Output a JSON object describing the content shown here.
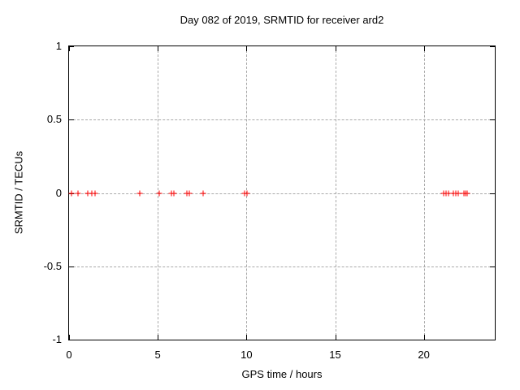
{
  "chart_data": {
    "type": "scatter",
    "title": "Day 082 of 2019, SRMTID for receiver ard2",
    "xlabel": "GPS time / hours",
    "ylabel": "SRMTID / TECUs",
    "xlim": [
      0,
      24
    ],
    "ylim": [
      -1,
      1
    ],
    "grid": true,
    "legend": "none",
    "xticks": [
      {
        "value": 0,
        "label": "0"
      },
      {
        "value": 5,
        "label": "5"
      },
      {
        "value": 10,
        "label": "10"
      },
      {
        "value": 15,
        "label": "15"
      },
      {
        "value": 20,
        "label": "20"
      }
    ],
    "yticks": [
      {
        "value": 1,
        "label": "1"
      },
      {
        "value": 0.5,
        "label": "0.5"
      },
      {
        "value": 0,
        "label": "0"
      },
      {
        "value": -0.5,
        "label": "-0.5"
      },
      {
        "value": -1,
        "label": "-1"
      }
    ],
    "marker": {
      "shape": "plus",
      "color": "#ff0000",
      "size": 7
    },
    "grid_color": "#a9a9a9",
    "frame_color": "#000000",
    "series": [
      {
        "name": "SRMTID",
        "color": "#ff0000",
        "x": [
          0.15,
          0.5,
          1.05,
          1.3,
          1.45,
          4.0,
          5.1,
          5.75,
          5.9,
          6.65,
          6.8,
          7.55,
          9.9,
          10.05,
          21.1,
          21.25,
          21.4,
          21.65,
          21.8,
          21.95,
          22.25,
          22.35,
          22.45
        ],
        "y": [
          0,
          0,
          0,
          0,
          0,
          0,
          0,
          0,
          0,
          0,
          0,
          0,
          0,
          0,
          0,
          0,
          0,
          0,
          0,
          0,
          0,
          0,
          0
        ]
      }
    ]
  }
}
